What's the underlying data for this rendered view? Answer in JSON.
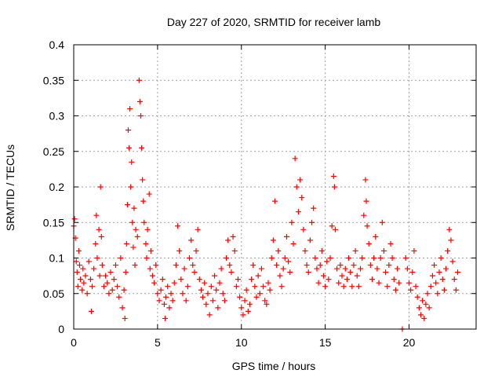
{
  "chart_data": {
    "type": "scatter",
    "title": "Day 227 of 2020, SRMTID for receiver lamb",
    "xlabel": "GPS time / hours",
    "ylabel": "SRMTID / TECUs",
    "xlim": [
      0,
      24
    ],
    "ylim": [
      0,
      0.4
    ],
    "xticks": [
      0,
      5,
      10,
      15,
      20
    ],
    "xtick_labels": [
      "0",
      "5",
      "10",
      "15",
      "20"
    ],
    "yticks": [
      0,
      0.05,
      0.1,
      0.15,
      0.2,
      0.25,
      0.3,
      0.35,
      0.4
    ],
    "ytick_labels": [
      "0",
      "0.05",
      "0.1",
      "0.15",
      "0.2",
      "0.25",
      "0.3",
      "0.35",
      "0.4"
    ],
    "grid": true,
    "marker": "+",
    "color": "#ff0000",
    "series": [
      {
        "name": "SRMTID",
        "points": [
          [
            0.0,
            0.145
          ],
          [
            0.05,
            0.155
          ],
          [
            0.1,
            0.128
          ],
          [
            0.15,
            0.095
          ],
          [
            0.2,
            0.08
          ],
          [
            0.25,
            0.06
          ],
          [
            0.3,
            0.11
          ],
          [
            0.35,
            0.09
          ],
          [
            0.4,
            0.07
          ],
          [
            0.5,
            0.055
          ],
          [
            0.55,
            0.085
          ],
          [
            0.6,
            0.065
          ],
          [
            0.7,
            0.075
          ],
          [
            0.8,
            0.05
          ],
          [
            0.9,
            0.095
          ],
          [
            1.0,
            0.07
          ],
          [
            1.05,
            0.025
          ],
          [
            1.1,
            0.06
          ],
          [
            1.2,
            0.085
          ],
          [
            1.3,
            0.12
          ],
          [
            1.35,
            0.16
          ],
          [
            1.4,
            0.1
          ],
          [
            1.5,
            0.14
          ],
          [
            1.55,
            0.075
          ],
          [
            1.6,
            0.2
          ],
          [
            1.65,
            0.13
          ],
          [
            1.7,
            0.09
          ],
          [
            1.8,
            0.06
          ],
          [
            1.9,
            0.075
          ],
          [
            2.0,
            0.065
          ],
          [
            2.1,
            0.05
          ],
          [
            2.2,
            0.08
          ],
          [
            2.3,
            0.055
          ],
          [
            2.4,
            0.07
          ],
          [
            2.5,
            0.09
          ],
          [
            2.6,
            0.06
          ],
          [
            2.7,
            0.045
          ],
          [
            2.8,
            0.1
          ],
          [
            2.9,
            0.03
          ],
          [
            3.0,
            0.055
          ],
          [
            3.05,
            0.015
          ],
          [
            3.1,
            0.08
          ],
          [
            3.15,
            0.12
          ],
          [
            3.2,
            0.175
          ],
          [
            3.25,
            0.28
          ],
          [
            3.3,
            0.255
          ],
          [
            3.35,
            0.31
          ],
          [
            3.4,
            0.2
          ],
          [
            3.45,
            0.235
          ],
          [
            3.5,
            0.15
          ],
          [
            3.55,
            0.115
          ],
          [
            3.6,
            0.17
          ],
          [
            3.65,
            0.09
          ],
          [
            3.7,
            0.14
          ],
          [
            3.8,
            0.13
          ],
          [
            3.9,
            0.35
          ],
          [
            3.95,
            0.32
          ],
          [
            4.0,
            0.3
          ],
          [
            4.05,
            0.255
          ],
          [
            4.1,
            0.21
          ],
          [
            4.15,
            0.18
          ],
          [
            4.2,
            0.15
          ],
          [
            4.3,
            0.12
          ],
          [
            4.35,
            0.1
          ],
          [
            4.4,
            0.14
          ],
          [
            4.5,
            0.19
          ],
          [
            4.55,
            0.085
          ],
          [
            4.6,
            0.11
          ],
          [
            4.7,
            0.075
          ],
          [
            4.8,
            0.065
          ],
          [
            4.9,
            0.09
          ],
          [
            5.0,
            0.05
          ],
          [
            5.1,
            0.04
          ],
          [
            5.2,
            0.055
          ],
          [
            5.3,
            0.07
          ],
          [
            5.4,
            0.035
          ],
          [
            5.45,
            0.015
          ],
          [
            5.5,
            0.045
          ],
          [
            5.6,
            0.06
          ],
          [
            5.7,
            0.03
          ],
          [
            5.8,
            0.05
          ],
          [
            5.9,
            0.04
          ],
          [
            6.0,
            0.065
          ],
          [
            6.1,
            0.09
          ],
          [
            6.2,
            0.145
          ],
          [
            6.3,
            0.11
          ],
          [
            6.4,
            0.07
          ],
          [
            6.5,
            0.05
          ],
          [
            6.6,
            0.085
          ],
          [
            6.7,
            0.04
          ],
          [
            6.8,
            0.06
          ],
          [
            6.9,
            0.1
          ],
          [
            7.0,
            0.125
          ],
          [
            7.1,
            0.09
          ],
          [
            7.2,
            0.08
          ],
          [
            7.3,
            0.11
          ],
          [
            7.4,
            0.14
          ],
          [
            7.5,
            0.07
          ],
          [
            7.6,
            0.055
          ],
          [
            7.7,
            0.045
          ],
          [
            7.8,
            0.065
          ],
          [
            7.9,
            0.035
          ],
          [
            8.0,
            0.05
          ],
          [
            8.1,
            0.02
          ],
          [
            8.2,
            0.06
          ],
          [
            8.3,
            0.04
          ],
          [
            8.4,
            0.075
          ],
          [
            8.5,
            0.055
          ],
          [
            8.6,
            0.03
          ],
          [
            8.7,
            0.065
          ],
          [
            8.8,
            0.085
          ],
          [
            8.9,
            0.05
          ],
          [
            9.0,
            0.04
          ],
          [
            9.1,
            0.1
          ],
          [
            9.2,
            0.125
          ],
          [
            9.3,
            0.09
          ],
          [
            9.4,
            0.08
          ],
          [
            9.5,
            0.13
          ],
          [
            9.6,
            0.11
          ],
          [
            9.7,
            0.06
          ],
          [
            9.8,
            0.07
          ],
          [
            9.9,
            0.045
          ],
          [
            10.0,
            0.03
          ],
          [
            10.1,
            0.02
          ],
          [
            10.2,
            0.04
          ],
          [
            10.3,
            0.055
          ],
          [
            10.4,
            0.025
          ],
          [
            10.5,
            0.035
          ],
          [
            10.6,
            0.07
          ],
          [
            10.7,
            0.09
          ],
          [
            10.8,
            0.06
          ],
          [
            10.9,
            0.045
          ],
          [
            11.0,
            0.075
          ],
          [
            11.1,
            0.05
          ],
          [
            11.2,
            0.085
          ],
          [
            11.3,
            0.06
          ],
          [
            11.4,
            0.04
          ],
          [
            11.5,
            0.035
          ],
          [
            11.6,
            0.065
          ],
          [
            11.7,
            0.055
          ],
          [
            11.8,
            0.1
          ],
          [
            11.9,
            0.125
          ],
          [
            12.0,
            0.18
          ],
          [
            12.1,
            0.09
          ],
          [
            12.2,
            0.11
          ],
          [
            12.3,
            0.075
          ],
          [
            12.4,
            0.06
          ],
          [
            12.5,
            0.085
          ],
          [
            12.6,
            0.1
          ],
          [
            12.7,
            0.13
          ],
          [
            12.8,
            0.095
          ],
          [
            12.9,
            0.08
          ],
          [
            13.0,
            0.15
          ],
          [
            13.1,
            0.12
          ],
          [
            13.2,
            0.24
          ],
          [
            13.3,
            0.2
          ],
          [
            13.4,
            0.165
          ],
          [
            13.5,
            0.21
          ],
          [
            13.6,
            0.185
          ],
          [
            13.7,
            0.14
          ],
          [
            13.8,
            0.11
          ],
          [
            13.9,
            0.09
          ],
          [
            14.0,
            0.08
          ],
          [
            14.1,
            0.125
          ],
          [
            14.2,
            0.15
          ],
          [
            14.3,
            0.17
          ],
          [
            14.4,
            0.1
          ],
          [
            14.5,
            0.085
          ],
          [
            14.6,
            0.065
          ],
          [
            14.7,
            0.09
          ],
          [
            14.8,
            0.11
          ],
          [
            14.9,
            0.075
          ],
          [
            15.0,
            0.06
          ],
          [
            15.1,
            0.095
          ],
          [
            15.2,
            0.07
          ],
          [
            15.3,
            0.1
          ],
          [
            15.4,
            0.145
          ],
          [
            15.5,
            0.215
          ],
          [
            15.55,
            0.2
          ],
          [
            15.6,
            0.14
          ],
          [
            15.7,
            0.085
          ],
          [
            15.8,
            0.065
          ],
          [
            15.9,
            0.09
          ],
          [
            16.0,
            0.075
          ],
          [
            16.1,
            0.06
          ],
          [
            16.2,
            0.085
          ],
          [
            16.3,
            0.07
          ],
          [
            16.4,
            0.1
          ],
          [
            16.5,
            0.08
          ],
          [
            16.6,
            0.06
          ],
          [
            16.7,
            0.09
          ],
          [
            16.8,
            0.11
          ],
          [
            16.9,
            0.075
          ],
          [
            17.0,
            0.06
          ],
          [
            17.1,
            0.085
          ],
          [
            17.2,
            0.1
          ],
          [
            17.3,
            0.16
          ],
          [
            17.4,
            0.21
          ],
          [
            17.45,
            0.18
          ],
          [
            17.5,
            0.145
          ],
          [
            17.6,
            0.12
          ],
          [
            17.7,
            0.09
          ],
          [
            17.8,
            0.07
          ],
          [
            17.9,
            0.1
          ],
          [
            18.0,
            0.13
          ],
          [
            18.1,
            0.085
          ],
          [
            18.2,
            0.065
          ],
          [
            18.3,
            0.1
          ],
          [
            18.4,
            0.15
          ],
          [
            18.5,
            0.11
          ],
          [
            18.6,
            0.08
          ],
          [
            18.7,
            0.06
          ],
          [
            18.8,
            0.09
          ],
          [
            18.9,
            0.12
          ],
          [
            19.0,
            0.1
          ],
          [
            19.1,
            0.07
          ],
          [
            19.2,
            0.055
          ],
          [
            19.3,
            0.085
          ],
          [
            19.4,
            0.065
          ],
          [
            19.6,
            0.0
          ],
          [
            19.8,
            0.1
          ],
          [
            19.9,
            0.085
          ],
          [
            20.0,
            0.065
          ],
          [
            20.1,
            0.055
          ],
          [
            20.2,
            0.08
          ],
          [
            20.3,
            0.11
          ],
          [
            20.4,
            0.06
          ],
          [
            20.5,
            0.045
          ],
          [
            20.6,
            0.03
          ],
          [
            20.7,
            0.02
          ],
          [
            20.8,
            0.04
          ],
          [
            20.9,
            0.015
          ],
          [
            21.0,
            0.035
          ],
          [
            21.1,
            0.05
          ],
          [
            21.2,
            0.03
          ],
          [
            21.3,
            0.06
          ],
          [
            21.4,
            0.075
          ],
          [
            21.5,
            0.09
          ],
          [
            21.6,
            0.065
          ],
          [
            21.7,
            0.05
          ],
          [
            21.8,
            0.08
          ],
          [
            21.9,
            0.1
          ],
          [
            22.0,
            0.07
          ],
          [
            22.1,
            0.055
          ],
          [
            22.2,
            0.085
          ],
          [
            22.3,
            0.11
          ],
          [
            22.4,
            0.14
          ],
          [
            22.5,
            0.125
          ],
          [
            22.6,
            0.095
          ],
          [
            22.7,
            0.07
          ],
          [
            22.8,
            0.055
          ],
          [
            22.9,
            0.08
          ]
        ]
      }
    ]
  }
}
